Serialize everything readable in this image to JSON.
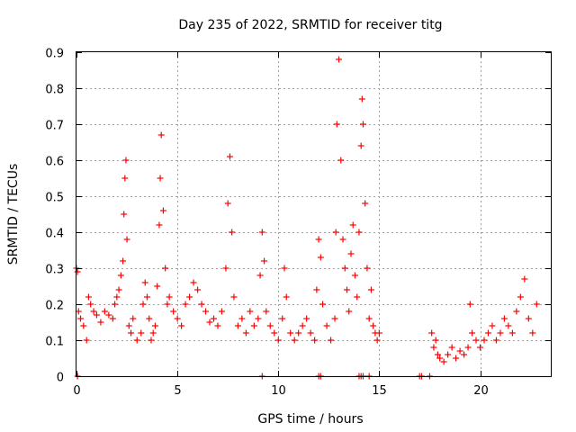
{
  "chart_data": {
    "type": "scatter",
    "title": "Day 235 of 2022, SRMTID for receiver titg",
    "xlabel": "GPS time / hours",
    "ylabel": "SRMTID / TECUs",
    "xlim": [
      0,
      23.5
    ],
    "ylim": [
      0,
      0.9
    ],
    "xticks": [
      0,
      5,
      10,
      15,
      20
    ],
    "xtick_labels": [
      "0",
      "5",
      "10",
      "15",
      "20"
    ],
    "yticks": [
      0,
      0.1,
      0.2,
      0.3,
      0.4,
      0.5,
      0.6,
      0.7,
      0.8,
      0.9
    ],
    "ytick_labels": [
      "0",
      "0.1",
      "0.2",
      "0.3",
      "0.4",
      "0.5",
      "0.6",
      "0.7",
      "0.8",
      "0.9"
    ],
    "grid": true,
    "marker": "+",
    "color": "#ff0000",
    "series": [
      {
        "name": "SRMTID",
        "x": [
          0.0,
          0.05,
          0.1,
          0.2,
          0.35,
          0.5,
          0.6,
          0.7,
          0.85,
          1.0,
          1.2,
          1.4,
          1.6,
          1.8,
          1.9,
          2.0,
          2.1,
          2.2,
          2.3,
          2.35,
          2.4,
          2.45,
          2.5,
          2.6,
          2.7,
          2.8,
          3.0,
          3.2,
          3.3,
          3.4,
          3.5,
          3.6,
          3.7,
          3.8,
          3.9,
          4.0,
          4.1,
          4.15,
          4.2,
          4.3,
          4.4,
          4.5,
          4.6,
          4.8,
          5.0,
          5.2,
          5.4,
          5.6,
          5.8,
          6.0,
          6.2,
          6.4,
          6.6,
          6.8,
          7.0,
          7.2,
          7.4,
          7.5,
          7.6,
          7.7,
          7.8,
          8.0,
          8.2,
          8.4,
          8.6,
          8.8,
          9.0,
          9.1,
          9.2,
          9.3,
          9.4,
          9.6,
          9.8,
          10.0,
          10.2,
          10.3,
          10.4,
          10.6,
          10.8,
          11.0,
          11.2,
          11.4,
          11.6,
          11.8,
          11.9,
          12.0,
          12.1,
          12.2,
          12.4,
          12.6,
          12.8,
          12.85,
          12.9,
          13.0,
          13.1,
          13.2,
          13.3,
          13.4,
          13.5,
          13.6,
          13.7,
          13.8,
          13.9,
          14.0,
          14.1,
          14.15,
          14.2,
          14.3,
          14.4,
          14.5,
          14.6,
          14.7,
          14.8,
          14.9,
          15.0,
          17.6,
          17.7,
          17.8,
          17.9,
          18.0,
          18.2,
          18.4,
          18.6,
          18.8,
          19.0,
          19.2,
          19.4,
          19.5,
          19.6,
          19.8,
          20.0,
          20.2,
          20.4,
          20.6,
          20.8,
          21.0,
          21.2,
          21.4,
          21.6,
          21.8,
          22.0,
          22.2,
          22.4,
          22.6,
          22.8,
          0.05,
          9.2,
          12.0,
          12.1,
          14.0,
          14.1,
          14.2,
          14.5,
          17.0,
          17.1,
          17.5
        ],
        "y": [
          0.3,
          0.29,
          0.18,
          0.16,
          0.14,
          0.1,
          0.22,
          0.2,
          0.18,
          0.17,
          0.15,
          0.18,
          0.17,
          0.16,
          0.2,
          0.22,
          0.24,
          0.28,
          0.32,
          0.45,
          0.55,
          0.6,
          0.38,
          0.14,
          0.12,
          0.16,
          0.1,
          0.12,
          0.2,
          0.26,
          0.22,
          0.16,
          0.1,
          0.12,
          0.14,
          0.25,
          0.42,
          0.55,
          0.67,
          0.46,
          0.3,
          0.2,
          0.22,
          0.18,
          0.16,
          0.14,
          0.2,
          0.22,
          0.26,
          0.24,
          0.2,
          0.18,
          0.15,
          0.16,
          0.14,
          0.18,
          0.3,
          0.48,
          0.61,
          0.4,
          0.22,
          0.14,
          0.16,
          0.12,
          0.18,
          0.14,
          0.16,
          0.28,
          0.4,
          0.32,
          0.18,
          0.14,
          0.12,
          0.1,
          0.16,
          0.3,
          0.22,
          0.12,
          0.1,
          0.12,
          0.14,
          0.16,
          0.12,
          0.1,
          0.24,
          0.38,
          0.33,
          0.2,
          0.14,
          0.1,
          0.16,
          0.4,
          0.7,
          0.88,
          0.6,
          0.38,
          0.3,
          0.24,
          0.18,
          0.34,
          0.42,
          0.28,
          0.22,
          0.4,
          0.64,
          0.77,
          0.7,
          0.48,
          0.3,
          0.16,
          0.24,
          0.14,
          0.12,
          0.1,
          0.12,
          0.12,
          0.08,
          0.1,
          0.06,
          0.05,
          0.04,
          0.06,
          0.08,
          0.05,
          0.07,
          0.06,
          0.08,
          0.2,
          0.12,
          0.1,
          0.08,
          0.1,
          0.12,
          0.14,
          0.1,
          0.12,
          0.16,
          0.14,
          0.12,
          0.18,
          0.22,
          0.27,
          0.16,
          0.12,
          0.2,
          0.0,
          0.0,
          0.0,
          0.0,
          0.0,
          0.0,
          0.0,
          0.0,
          0.0,
          0.0,
          0.0
        ]
      }
    ]
  }
}
